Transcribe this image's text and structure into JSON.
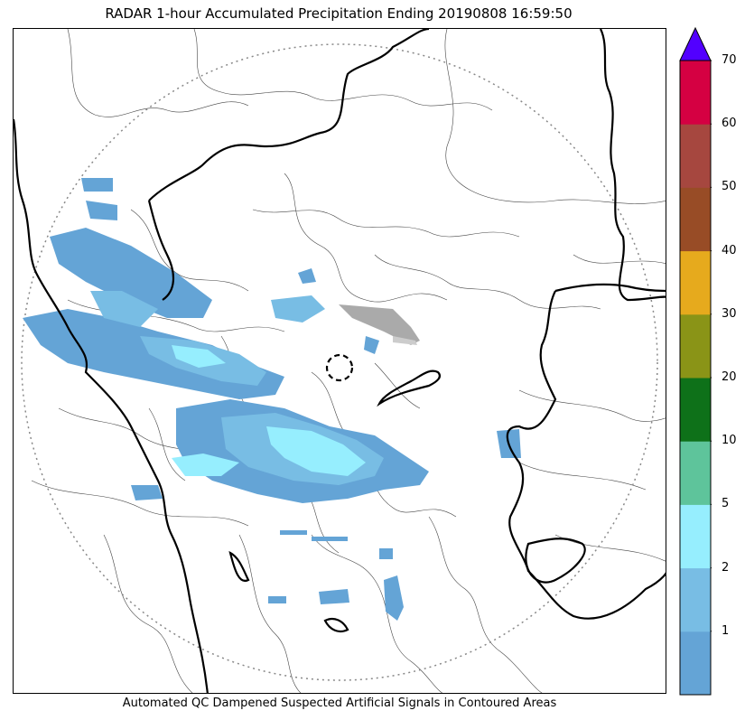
{
  "title": "RADAR 1-hour Accumulated Precipitation Ending 20190808 16:59:50",
  "caption": "Automated QC Dampened Suspected Artificial Signals in Contoured Areas",
  "colorbar": {
    "unit_note": "",
    "bins": [
      {
        "from": 0,
        "to": 1,
        "color": "#64a4d6"
      },
      {
        "from": 1,
        "to": 2,
        "color": "#78bde4"
      },
      {
        "from": 2,
        "to": 5,
        "color": "#96eefe"
      },
      {
        "from": 5,
        "to": 10,
        "color": "#5ec49b"
      },
      {
        "from": 10,
        "to": 20,
        "color": "#0e7119"
      },
      {
        "from": 20,
        "to": 30,
        "color": "#8a9417"
      },
      {
        "from": 30,
        "to": 40,
        "color": "#e6aa1d"
      },
      {
        "from": 40,
        "to": 50,
        "color": "#984c26"
      },
      {
        "from": 50,
        "to": 60,
        "color": "#a6473f"
      },
      {
        "from": 60,
        "to": 70,
        "color": "#d50042"
      }
    ],
    "extend_color": "#5200ff",
    "tick_labels": [
      "1",
      "2",
      "5",
      "10",
      "20",
      "30",
      "40",
      "50",
      "60",
      "70"
    ]
  },
  "map": {
    "range_ring": "dotted",
    "radar_site_marker": "dashed-circle",
    "colors": {
      "boundary_major": "#000000",
      "boundary_minor": "#444444",
      "range_ring": "#888888",
      "light_rain": "#64a4d6",
      "moderate_rain": "#96eefe",
      "qc_flag": "#aaaaaa"
    }
  }
}
